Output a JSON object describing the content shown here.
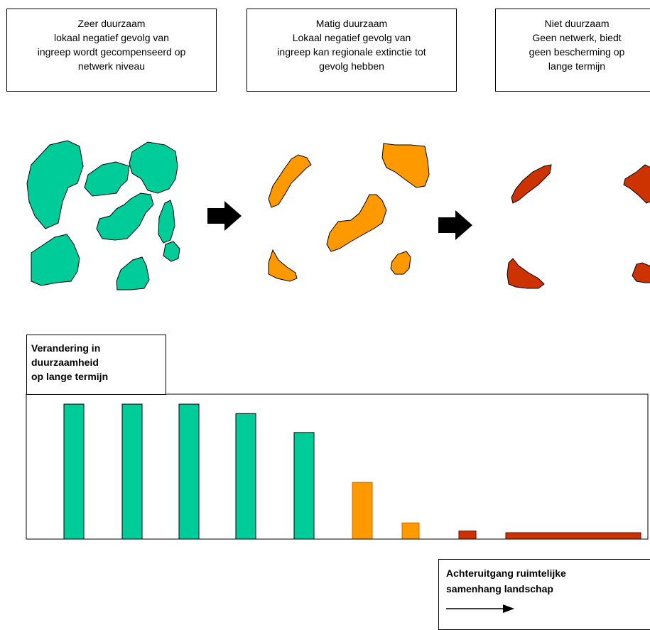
{
  "boxes": [
    {
      "lines": [
        "Zeer duurzaam",
        "lokaal negatief gevolg  van",
        "ingreep wordt gecompenseerd op",
        "netwerk niveau"
      ]
    },
    {
      "lines": [
        "Matig duurzaam",
        "Lokaal negatief gevolg van",
        "ingreep kan regionale extinctie tot",
        "gevolg hebben"
      ]
    },
    {
      "lines": [
        "Niet duurzaam",
        "Geen netwerk, biedt",
        "geen bescherming op",
        "lange termijn"
      ]
    }
  ],
  "colors": {
    "green": "#00CC99",
    "orange": "#FF9900",
    "red": "#CC3300",
    "arrow": "#000000"
  },
  "chart_label": {
    "lines": [
      "Verandering in",
      "duurzaamheid",
      "op lange termijn"
    ]
  },
  "trend": {
    "lines": [
      "Achteruitgang ruimtelijke",
      "samenhang landschap"
    ]
  },
  "chart_data": {
    "type": "bar",
    "title": "",
    "xlabel": "",
    "ylabel": "",
    "ylim": [
      0,
      100
    ],
    "values": [
      100,
      100,
      100,
      93,
      79,
      42,
      12,
      6,
      2
    ],
    "colors": [
      "green",
      "green",
      "green",
      "green",
      "green",
      "orange",
      "orange",
      "red",
      "red"
    ],
    "grid": false
  }
}
